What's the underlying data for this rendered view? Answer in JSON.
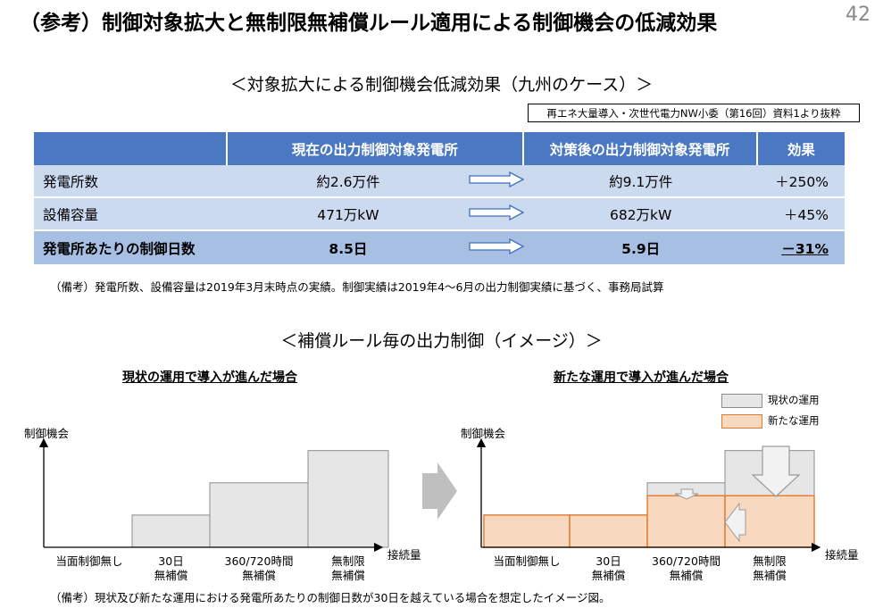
{
  "page": {
    "title": "（参考）制御対象拡大と無制限無補償ルール適用による制御機会の低減効果",
    "page_number": "42"
  },
  "section1": {
    "heading": "＜対象拡大による制御機会低減効果（九州のケース）＞",
    "source": "再エネ大量導入・次世代電力NW小委（第16回）資料1より抜粋",
    "table": {
      "headers": [
        "",
        "現在の出力制御対象発電所",
        "",
        "対策後の出力制御対象発電所",
        "効果"
      ],
      "rows": [
        {
          "label": "発電所数",
          "current": "約2.6万件",
          "after": "約9.1万件",
          "effect": "＋250%"
        },
        {
          "label": "設備容量",
          "current": "471万kW",
          "after": "682万kW",
          "effect": "＋45%"
        },
        {
          "label": "発電所あたりの制御日数",
          "current": "8.5日",
          "after": "5.9日",
          "effect": "－31%"
        }
      ]
    },
    "note": "（備考）発電所数、設備容量は2019年3月末時点の実績。制御実績は2019年4～6月の出力制御実績に基づく、事務局試算"
  },
  "section2": {
    "heading": "＜補償ルール毎の出力制御（イメージ）＞",
    "note": "（備考）現状及び新たな運用における発電所あたりの制御日数が30日を越えている場合を想定したイメージ図。",
    "legend": {
      "current": "現状の運用",
      "new": "新たな運用",
      "current_color": "#e6e6e6",
      "new_color": "#f8d9bf",
      "new_border": "#e07a2c"
    }
  },
  "chart_data": [
    {
      "type": "bar",
      "title": "現状の運用で導入が進んだ場合",
      "ylabel": "制御機会",
      "xlabel": "接続量",
      "categories": [
        "当面制御無し",
        "30日\n無補償",
        "360/720時間\n無補償",
        "無制限\n無補償"
      ],
      "series": [
        {
          "name": "現状の運用",
          "values": [
            0,
            1,
            2,
            3
          ]
        }
      ],
      "ylim": [
        0,
        3.6
      ]
    },
    {
      "type": "bar",
      "title": "新たな運用で導入が進んだ場合",
      "ylabel": "制御機会",
      "xlabel": "接続量",
      "categories": [
        "当面制御無し",
        "30日\n無補償",
        "360/720時間\n無補償",
        "無制限\n無補償"
      ],
      "series": [
        {
          "name": "新たな運用",
          "values": [
            1,
            1,
            1.6,
            1.6
          ]
        },
        {
          "name": "現状の運用",
          "values": [
            0,
            1,
            2,
            3
          ]
        }
      ],
      "ylim": [
        0,
        3.6
      ]
    }
  ]
}
